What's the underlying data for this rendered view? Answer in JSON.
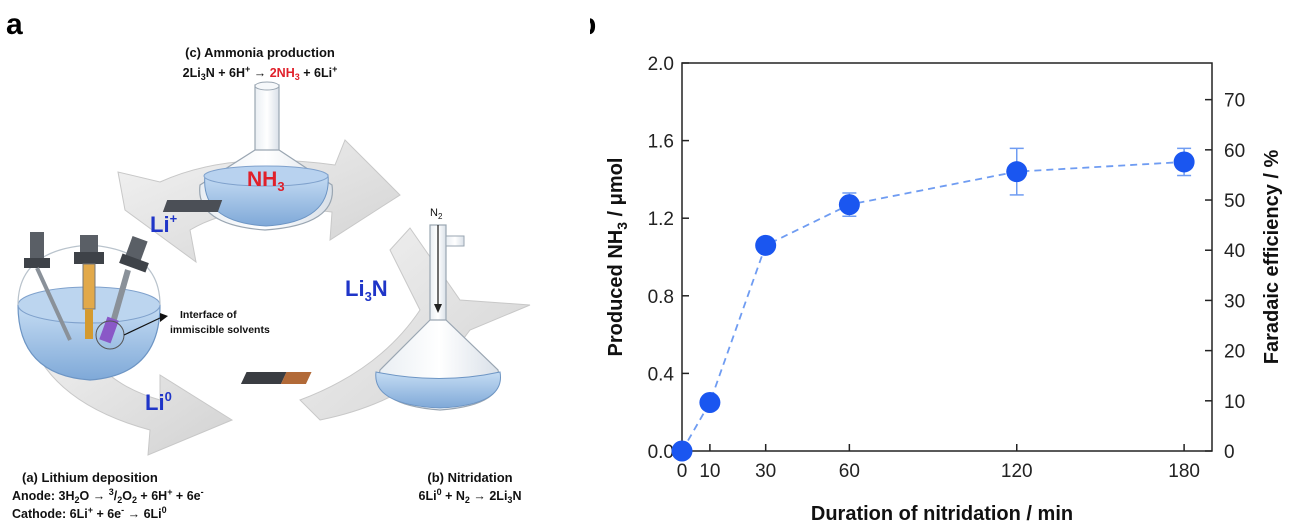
{
  "panel_a": {
    "letter": "a",
    "step_c": {
      "title": "(c) Ammonia production",
      "eq_parts": [
        "2Li",
        "3",
        "N + 6H",
        "+",
        " → ",
        "2NH",
        "3",
        " + 6Li",
        "+"
      ]
    },
    "flask_label": {
      "main": "NH",
      "sub": "3"
    },
    "li_plus": {
      "main": "Li",
      "sup": "+"
    },
    "li3n": {
      "main": "Li",
      "sub": "3",
      "tail": "N"
    },
    "li0": {
      "main": "Li",
      "sup": "0"
    },
    "n2_label": {
      "main": "N",
      "sub": "2"
    },
    "interface_note": [
      "Interface of",
      "immiscible solvents"
    ],
    "step_a": {
      "title": "(a) Lithium deposition",
      "anode": [
        "Anode: 3H",
        "2",
        "O → ",
        "3",
        "/",
        "2",
        "O",
        "2",
        " + 6H",
        "+",
        " + 6e",
        "-"
      ],
      "cathode": [
        "Cathode: 6Li",
        "+",
        " + 6e",
        "-",
        " → 6Li",
        "0"
      ]
    },
    "step_b": {
      "title": "(b) Nitridation",
      "eq": [
        "6Li",
        "0",
        " + N",
        "2",
        " → 2Li",
        "3",
        "N"
      ]
    },
    "colors": {
      "red": "#e0202a",
      "blue": "#1f35c8",
      "solution": "#9fc3ea"
    }
  },
  "panel_b": {
    "letter": "b"
  },
  "chart_data": {
    "type": "scatter",
    "x": [
      0,
      10,
      30,
      60,
      120,
      180
    ],
    "xticks": [
      0,
      10,
      30,
      60,
      120,
      180
    ],
    "xlim": [
      0,
      190
    ],
    "xlabel": "Duration of nitridation / min",
    "series": [
      {
        "values": [
          0.0,
          0.25,
          1.06,
          1.27,
          1.44,
          1.49
        ],
        "error": [
          0,
          0,
          0,
          0.06,
          0.12,
          0.07
        ],
        "color": "#1a56f0",
        "line": "dashed"
      }
    ],
    "ylim": [
      0,
      2.0
    ],
    "yticks": [
      0.0,
      0.4,
      0.8,
      1.2,
      1.6,
      2.0
    ],
    "ytick_labels": [
      "0.0",
      "0.4",
      "0.8",
      "1.2",
      "1.6",
      "2.0"
    ],
    "ylabel": {
      "main": "Produced NH",
      "sub": "3",
      "tail": " / μmol"
    },
    "y2lim": [
      0,
      77.3
    ],
    "y2ticks": [
      0,
      10,
      20,
      30,
      40,
      50,
      60,
      70
    ],
    "y2label": "Faradaic efficiency / %",
    "grid": false,
    "legend": "none"
  }
}
